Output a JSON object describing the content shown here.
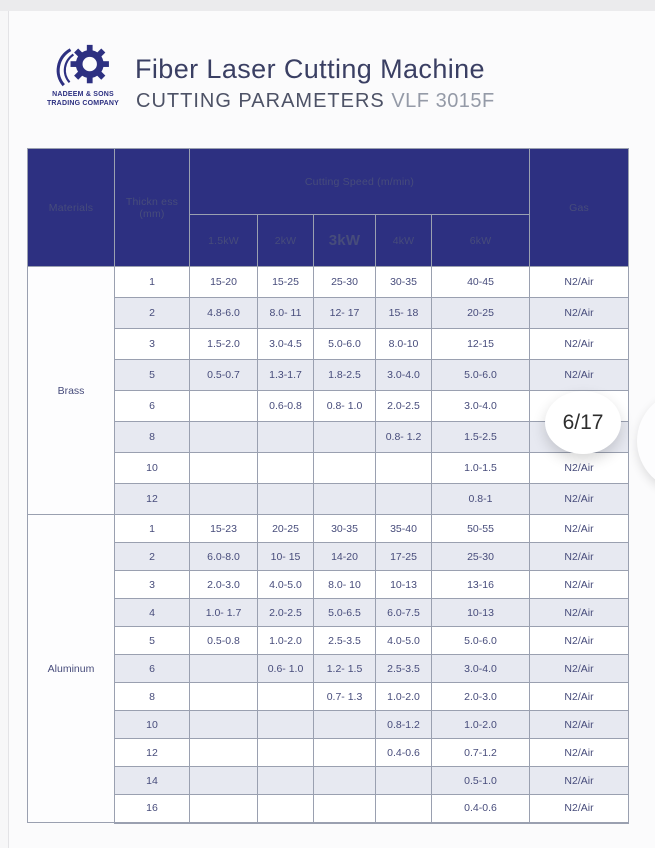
{
  "page": {
    "indicator": "6/17"
  },
  "header": {
    "logo_line1": "NADEEM & SONS",
    "logo_line2": "TRADING COMPANY",
    "title": "Fiber Laser Cutting Machine",
    "subtitle": "CUTTING PARAMETERS",
    "model": "VLF 3015F"
  },
  "colors": {
    "navy": "#2d3081",
    "row_shade": "#e7e9f1",
    "body_text": "#474c7b",
    "border": "#9aa0b0"
  },
  "table": {
    "header": {
      "materials": "Materials",
      "thickness_line1": "Thickn ess",
      "thickness_line2": "(mm)",
      "speed_group": "Cutting Speed (m/min)",
      "power_columns": [
        "1.5kW",
        "2kW",
        "3kW",
        "4kW",
        "6kW"
      ],
      "gas": "Gas"
    },
    "sections": [
      {
        "material": "Brass",
        "rows": [
          {
            "thickness": "1",
            "speeds": [
              "15-20",
              "15-25",
              "25-30",
              "30-35",
              "40-45"
            ],
            "gas": "N2/Air"
          },
          {
            "thickness": "2",
            "speeds": [
              "4.8-6.0",
              "8.0- 11",
              "12- 17",
              "15- 18",
              "20-25"
            ],
            "gas": "N2/Air"
          },
          {
            "thickness": "3",
            "speeds": [
              "1.5-2.0",
              "3.0-4.5",
              "5.0-6.0",
              "8.0-10",
              "12-15"
            ],
            "gas": "N2/Air"
          },
          {
            "thickness": "5",
            "speeds": [
              "0.5-0.7",
              "1.3-1.7",
              "1.8-2.5",
              "3.0-4.0",
              "5.0-6.0"
            ],
            "gas": "N2/Air"
          },
          {
            "thickness": "6",
            "speeds": [
              "",
              "0.6-0.8",
              "0.8- 1.0",
              "2.0-2.5",
              "3.0-4.0"
            ],
            "gas": ""
          },
          {
            "thickness": "8",
            "speeds": [
              "",
              "",
              "",
              "0.8- 1.2",
              "1.5-2.5"
            ],
            "gas": ""
          },
          {
            "thickness": "10",
            "speeds": [
              "",
              "",
              "",
              "",
              "1.0-1.5"
            ],
            "gas": "N2/Air"
          },
          {
            "thickness": "12",
            "speeds": [
              "",
              "",
              "",
              "",
              "0.8-1"
            ],
            "gas": "N2/Air"
          }
        ]
      },
      {
        "material": "Aluminum",
        "rows": [
          {
            "thickness": "1",
            "speeds": [
              "15-23",
              "20-25",
              "30-35",
              "35-40",
              "50-55"
            ],
            "gas": "N2/Air"
          },
          {
            "thickness": "2",
            "speeds": [
              "6.0-8.0",
              "10- 15",
              "14-20",
              "17-25",
              "25-30"
            ],
            "gas": "N2/Air"
          },
          {
            "thickness": "3",
            "speeds": [
              "2.0-3.0",
              "4.0-5.0",
              "8.0- 10",
              "10-13",
              "13-16"
            ],
            "gas": "N2/Air"
          },
          {
            "thickness": "4",
            "speeds": [
              "1.0- 1.7",
              "2.0-2.5",
              "5.0-6.5",
              "6.0-7.5",
              "10-13"
            ],
            "gas": "N2/Air"
          },
          {
            "thickness": "5",
            "speeds": [
              "0.5-0.8",
              "1.0-2.0",
              "2.5-3.5",
              "4.0-5.0",
              "5.0-6.0"
            ],
            "gas": "N2/Air"
          },
          {
            "thickness": "6",
            "speeds": [
              "",
              "0.6- 1.0",
              "1.2- 1.5",
              "2.5-3.5",
              "3.0-4.0"
            ],
            "gas": "N2/Air"
          },
          {
            "thickness": "8",
            "speeds": [
              "",
              "",
              "0.7- 1.3",
              "1.0-2.0",
              "2.0-3.0"
            ],
            "gas": "N2/Air"
          },
          {
            "thickness": "10",
            "speeds": [
              "",
              "",
              "",
              "0.8-1.2",
              "1.0-2.0"
            ],
            "gas": "N2/Air"
          },
          {
            "thickness": "12",
            "speeds": [
              "",
              "",
              "",
              "0.4-0.6",
              "0.7-1.2"
            ],
            "gas": "N2/Air"
          },
          {
            "thickness": "14",
            "speeds": [
              "",
              "",
              "",
              "",
              "0.5-1.0"
            ],
            "gas": "N2/Air"
          },
          {
            "thickness": "16",
            "speeds": [
              "",
              "",
              "",
              "",
              "0.4-0.6"
            ],
            "gas": "N2/Air"
          }
        ]
      }
    ]
  }
}
